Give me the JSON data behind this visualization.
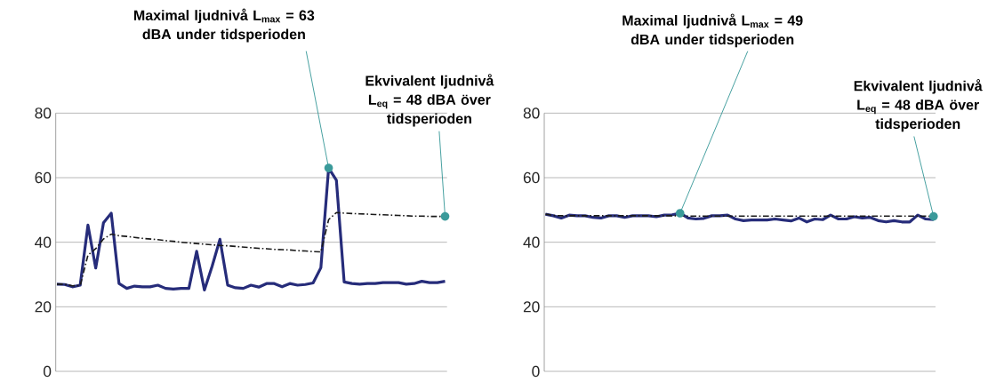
{
  "chart_data": [
    {
      "type": "line",
      "categories": [
        null,
        null,
        null,
        null,
        null,
        null,
        null,
        null,
        null,
        null,
        null,
        null,
        null,
        null,
        null,
        null,
        null,
        null,
        null,
        null,
        null,
        null,
        null,
        null,
        null,
        null,
        null,
        null,
        null,
        null,
        null,
        null,
        null,
        null,
        null,
        null,
        null,
        null,
        null,
        null,
        null,
        null,
        null,
        null,
        null,
        null,
        null,
        null,
        null,
        null,
        null
      ],
      "series": [
        {
          "line_style": "solid",
          "color": "#262c7a",
          "values": [
            27,
            26.9,
            26.2,
            26.7,
            45.3,
            32,
            46,
            49,
            27.2,
            25.7,
            26.4,
            26.2,
            26.2,
            26.7,
            25.7,
            25.5,
            25.7,
            25.7,
            37.2,
            25.2,
            32.6,
            40.9,
            26.7,
            25.9,
            25.7,
            26.7,
            26.1,
            27.2,
            27.2,
            26.2,
            27.2,
            26.7,
            26.9,
            27.4,
            32.1,
            63,
            59.2,
            27.7,
            27.2,
            27,
            27.2,
            27.2,
            27.5,
            27.5,
            27.5,
            27,
            27.2,
            27.9,
            27.5,
            27.5,
            27.9
          ]
        },
        {
          "line_style": "dashed",
          "color": "#1a1a1a",
          "values": [
            27,
            27,
            26.5,
            26.6,
            36,
            38,
            41,
            42.5,
            42,
            41.8,
            41.5,
            41.2,
            41,
            40.8,
            40.5,
            40.3,
            40,
            39.8,
            39.6,
            39.4,
            39.2,
            39,
            38.9,
            38.7,
            38.5,
            38.3,
            38.1,
            38,
            37.8,
            37.7,
            37.6,
            37.4,
            37.3,
            37.1,
            37,
            47,
            49.2,
            49,
            48.9,
            48.8,
            48.7,
            48.6,
            48.5,
            48.4,
            48.3,
            48.2,
            48.1,
            48.1,
            48,
            48,
            48
          ]
        }
      ],
      "ylim": [
        0,
        80
      ],
      "yticks": [
        0,
        20,
        40,
        60,
        80
      ],
      "grid": "y",
      "tick_labels": "y",
      "annotations": [
        "Maximal ljudnivå L$_{max}$ = 63 dBA under tidsperioden",
        "Ekvivalent ljudnivå L$_{eq}$ = 48 dBA över tidsperioden"
      ]
    },
    {
      "type": "line",
      "categories": [
        null,
        null,
        null,
        null,
        null,
        null,
        null,
        null,
        null,
        null,
        null,
        null,
        null,
        null,
        null,
        null,
        null,
        null,
        null,
        null,
        null,
        null,
        null,
        null,
        null,
        null,
        null,
        null,
        null,
        null,
        null,
        null,
        null,
        null,
        null,
        null,
        null,
        null,
        null,
        null,
        null,
        null,
        null,
        null,
        null,
        null,
        null,
        null,
        null,
        null
      ],
      "series": [
        {
          "line_style": "solid",
          "color": "#262c7a",
          "values": [
            48.7,
            48.2,
            47.5,
            48.4,
            48.2,
            48.2,
            47.7,
            47.5,
            48.2,
            48.2,
            47.7,
            48.2,
            48.2,
            48.2,
            47.9,
            48.4,
            48.5,
            49,
            47.5,
            47.2,
            47.4,
            48.2,
            48.2,
            48.4,
            47.2,
            46.7,
            46.9,
            46.9,
            46.9,
            47.2,
            46.9,
            46.6,
            47.5,
            46.3,
            47.2,
            47,
            48.4,
            47.2,
            47.2,
            47.9,
            47.5,
            47.7,
            46.7,
            46.3,
            46.7,
            46.3,
            46.3,
            48.4,
            47.2,
            47
          ]
        },
        {
          "line_style": "dashed",
          "color": "#1a1a1a",
          "values": [
            48.7,
            48.3,
            48.2,
            48.2,
            48.2,
            48.2,
            48.2,
            48.2,
            48.2,
            48.2,
            48.2,
            48.2,
            48.2,
            48.2,
            48.2,
            48.2,
            48.2,
            48.2,
            48.1,
            48.1,
            48.1,
            48.1,
            48.1,
            48.1,
            48.1,
            48.1,
            48.1,
            48.1,
            48.1,
            48.1,
            48.1,
            48.1,
            48.1,
            48.1,
            48.1,
            48.1,
            48.1,
            48.1,
            48.1,
            48.1,
            48.1,
            48.1,
            48.1,
            48.1,
            48.1,
            48.1,
            48.1,
            48.1,
            48.1,
            48
          ]
        }
      ],
      "ylim": [
        0,
        80
      ],
      "yticks": [
        0,
        20,
        40,
        60,
        80
      ],
      "grid": "y",
      "tick_labels": "y",
      "annotations": [
        "Maximal ljudnivå L$_{max}$ = 49 dBA under tidsperioden",
        "Ekvivalent ljudnivå L$_{eq}$ = 48 dBA över tidsperioden"
      ]
    }
  ]
}
